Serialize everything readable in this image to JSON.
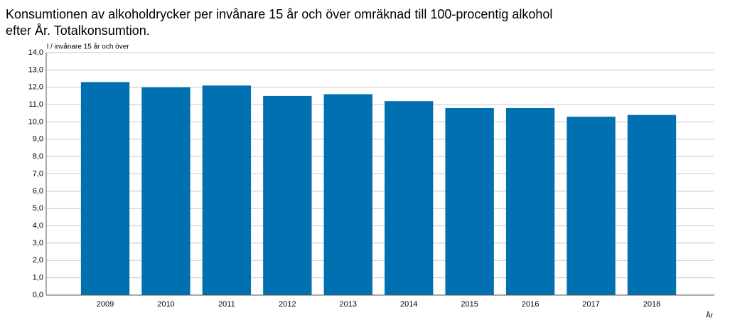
{
  "chart_data": {
    "type": "bar",
    "title": "Konsumtionen av alkoholdrycker per invånare 15 år och över omräknad till 100-procentig alkohol",
    "subtitle": "efter År. Totalkonsumtion.",
    "y_label": "l / invånare 15 år och över",
    "x_label": "År",
    "categories": [
      "2009",
      "2010",
      "2011",
      "2012",
      "2013",
      "2014",
      "2015",
      "2016",
      "2017",
      "2018"
    ],
    "values": [
      12.3,
      12.0,
      12.1,
      11.5,
      11.6,
      11.2,
      10.8,
      10.8,
      10.3,
      10.4
    ],
    "color": "#0070b0",
    "ylim": [
      0,
      14
    ],
    "yticks": [
      {
        "value": 0,
        "label": "0,0"
      },
      {
        "value": 1,
        "label": "1,0"
      },
      {
        "value": 2,
        "label": "2,0"
      },
      {
        "value": 3,
        "label": "3,0"
      },
      {
        "value": 4,
        "label": "4,0"
      },
      {
        "value": 5,
        "label": "5,0"
      },
      {
        "value": 6,
        "label": "6,0"
      },
      {
        "value": 7,
        "label": "7,0"
      },
      {
        "value": 8,
        "label": "8,0"
      },
      {
        "value": 9,
        "label": "9,0"
      },
      {
        "value": 10,
        "label": "10,0"
      },
      {
        "value": 11,
        "label": "11,0"
      },
      {
        "value": 12,
        "label": "12,0"
      },
      {
        "value": 13,
        "label": "13,0"
      },
      {
        "value": 14,
        "label": "14,0"
      }
    ],
    "grid": true
  }
}
